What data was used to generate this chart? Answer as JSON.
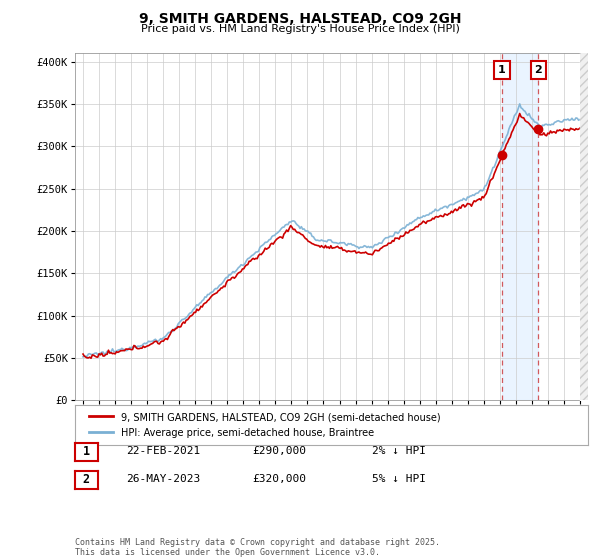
{
  "title": "9, SMITH GARDENS, HALSTEAD, CO9 2GH",
  "subtitle": "Price paid vs. HM Land Registry's House Price Index (HPI)",
  "ylim": [
    0,
    410000
  ],
  "xlim_start": 1994.5,
  "xlim_end": 2026.5,
  "hpi_color": "#7ab0d4",
  "price_color": "#cc0000",
  "marker1_x": 2021.12,
  "marker1_y": 290000,
  "marker2_x": 2023.41,
  "marker2_y": 320000,
  "legend_label1": "9, SMITH GARDENS, HALSTEAD, CO9 2GH (semi-detached house)",
  "legend_label2": "HPI: Average price, semi-detached house, Braintree",
  "table_row1": [
    "1",
    "22-FEB-2021",
    "£290,000",
    "2% ↓ HPI"
  ],
  "table_row2": [
    "2",
    "26-MAY-2023",
    "£320,000",
    "5% ↓ HPI"
  ],
  "footnote": "Contains HM Land Registry data © Crown copyright and database right 2025.\nThis data is licensed under the Open Government Licence v3.0.",
  "bg_color": "#ffffff",
  "grid_color": "#cccccc",
  "shaded_color": "#ddeeff"
}
